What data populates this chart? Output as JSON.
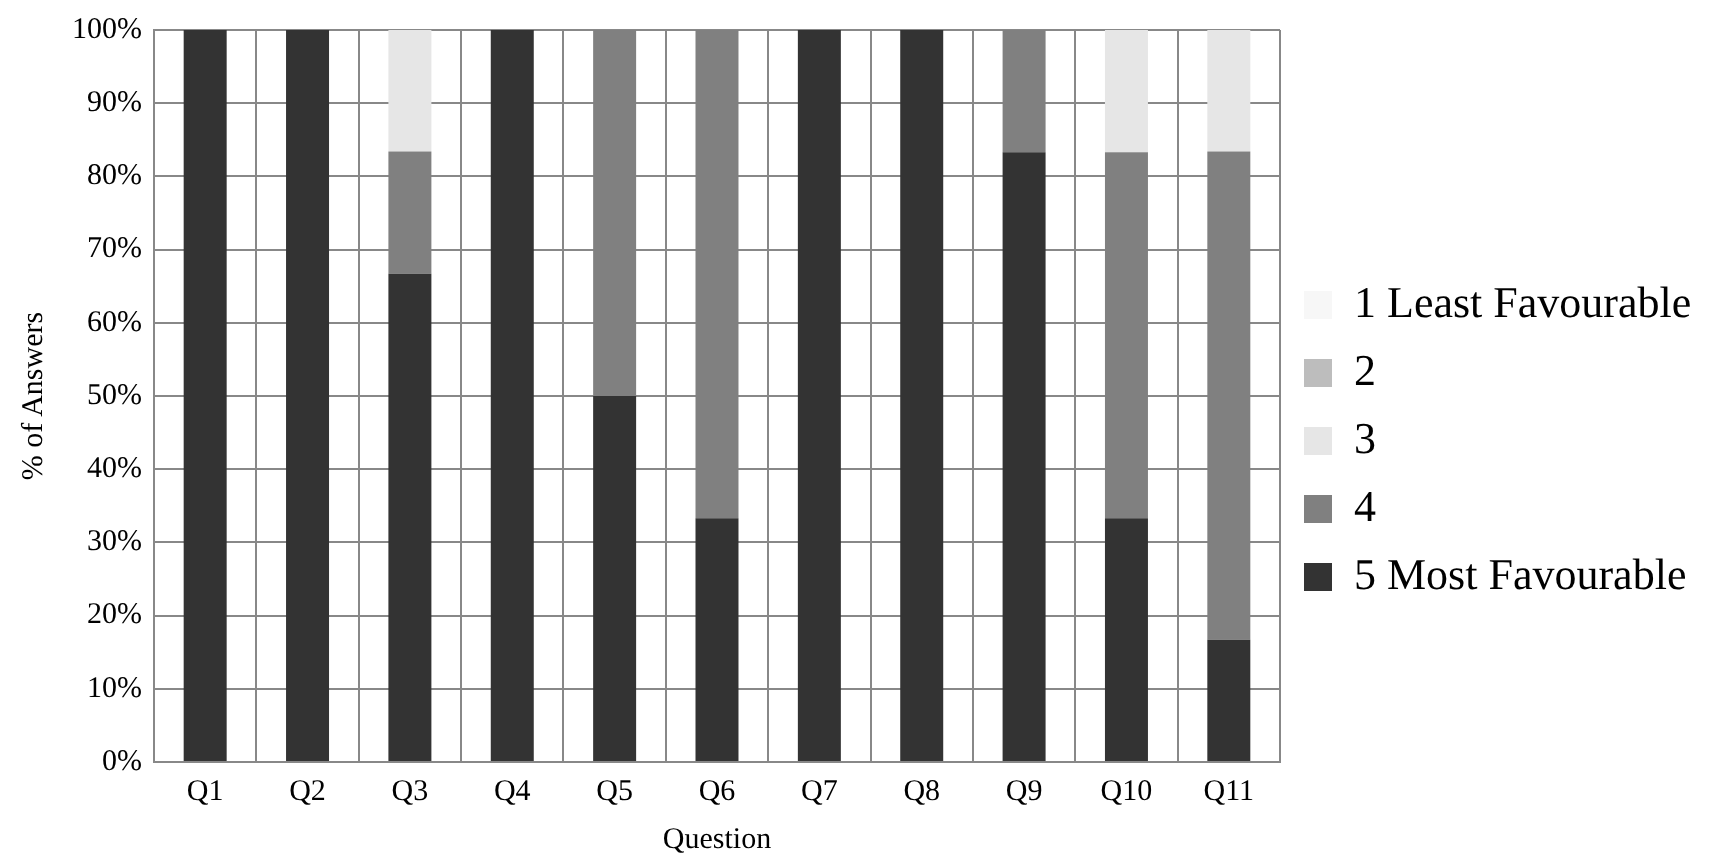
{
  "chart_data": {
    "type": "bar",
    "stacked": true,
    "xlabel": "Question",
    "ylabel": "% of Answers",
    "categories": [
      "Q1",
      "Q2",
      "Q3",
      "Q4",
      "Q5",
      "Q6",
      "Q7",
      "Q8",
      "Q9",
      "Q10",
      "Q11"
    ],
    "series": [
      {
        "name": "5 Most Favourable",
        "color": "#333333",
        "values": [
          100,
          100,
          66.7,
          100,
          50,
          33.3,
          100,
          100,
          83.3,
          33.3,
          16.7
        ]
      },
      {
        "name": "4",
        "color": "#808080",
        "values": [
          0,
          0,
          16.7,
          0,
          50,
          66.7,
          0,
          0,
          16.7,
          50,
          66.7
        ]
      },
      {
        "name": "3",
        "color": "#e6e6e6",
        "values": [
          0,
          0,
          16.7,
          0,
          0,
          0,
          0,
          0,
          0,
          16.7,
          16.7
        ]
      },
      {
        "name": "2",
        "color": "#bdbdbd",
        "values": [
          0,
          0,
          0,
          0,
          0,
          0,
          0,
          0,
          0,
          0,
          0
        ]
      },
      {
        "name": "1 Least Favourable",
        "color": "#f7f7f7",
        "values": [
          0,
          0,
          0,
          0,
          0,
          0,
          0,
          0,
          0,
          0,
          0
        ]
      }
    ],
    "ylim": [
      0,
      100
    ],
    "yticks": [
      {
        "value": 0,
        "label": "0%"
      },
      {
        "value": 10,
        "label": "10%"
      },
      {
        "value": 20,
        "label": "20%"
      },
      {
        "value": 30,
        "label": "30%"
      },
      {
        "value": 40,
        "label": "40%"
      },
      {
        "value": 50,
        "label": "50%"
      },
      {
        "value": 60,
        "label": "60%"
      },
      {
        "value": 70,
        "label": "70%"
      },
      {
        "value": 80,
        "label": "80%"
      },
      {
        "value": 90,
        "label": "90%"
      },
      {
        "value": 100,
        "label": "100%"
      }
    ],
    "grid": true,
    "legend": "right"
  }
}
